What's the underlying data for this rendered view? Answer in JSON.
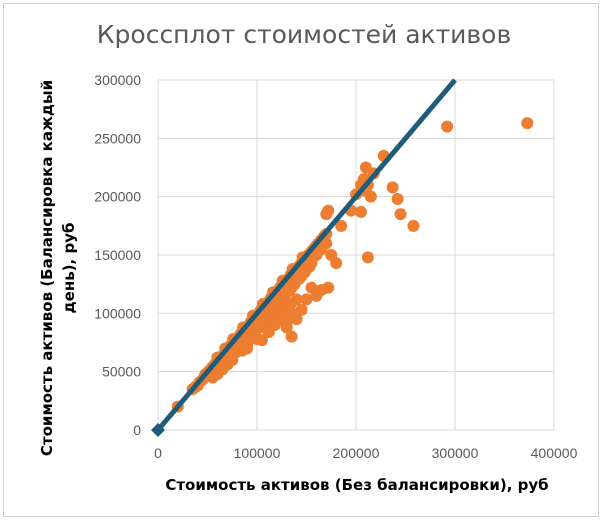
{
  "chart_data": {
    "type": "scatter",
    "title": "Кроссплот стоимостей активов",
    "xlabel": "Стоимость активов (Без балансировки), руб",
    "ylabel_lines": [
      "Стоимость активов  (Балансировка каждый",
      "день), руб"
    ],
    "xlim": [
      0,
      400000
    ],
    "ylim": [
      0,
      300000
    ],
    "x_ticks": [
      "0",
      "100000",
      "200000",
      "300000",
      "400000"
    ],
    "y_ticks": [
      "0",
      "50000",
      "100000",
      "150000",
      "200000",
      "250000",
      "300000"
    ],
    "grid": true,
    "colors": {
      "points": "#ED7D31",
      "line": "#1F5C7A",
      "grid": "#D9D9D9",
      "title": "#595959"
    },
    "reference_line": {
      "x": [
        0,
        300000
      ],
      "y": [
        0,
        300000
      ]
    },
    "series": [
      {
        "points": [
          [
            20000,
            20000
          ],
          [
            35000,
            35000
          ],
          [
            38000,
            37000
          ],
          [
            40000,
            38000
          ],
          [
            42000,
            41000
          ],
          [
            45000,
            43000
          ],
          [
            47000,
            46000
          ],
          [
            48000,
            48000
          ],
          [
            50000,
            49000
          ],
          [
            52000,
            51000
          ],
          [
            55000,
            54000
          ],
          [
            56000,
            52000
          ],
          [
            58000,
            57000
          ],
          [
            60000,
            58000
          ],
          [
            62000,
            60000
          ],
          [
            64000,
            63000
          ],
          [
            65000,
            61000
          ],
          [
            68000,
            66000
          ],
          [
            70000,
            68000
          ],
          [
            72000,
            70000
          ],
          [
            74000,
            73000
          ],
          [
            75000,
            72000
          ],
          [
            78000,
            76000
          ],
          [
            80000,
            78000
          ],
          [
            82000,
            80000
          ],
          [
            84000,
            83000
          ],
          [
            85000,
            81000
          ],
          [
            88000,
            86000
          ],
          [
            90000,
            88000
          ],
          [
            92000,
            90000
          ],
          [
            94000,
            93000
          ],
          [
            95000,
            91000
          ],
          [
            98000,
            96000
          ],
          [
            100000,
            98000
          ],
          [
            102000,
            100000
          ],
          [
            104000,
            103000
          ],
          [
            105000,
            101000
          ],
          [
            108000,
            106000
          ],
          [
            110000,
            108000
          ],
          [
            112000,
            110000
          ],
          [
            114000,
            113000
          ],
          [
            115000,
            111000
          ],
          [
            118000,
            116000
          ],
          [
            120000,
            118000
          ],
          [
            122000,
            120000
          ],
          [
            124000,
            123000
          ],
          [
            125000,
            121000
          ],
          [
            128000,
            126000
          ],
          [
            130000,
            128000
          ],
          [
            132000,
            130000
          ],
          [
            134000,
            133000
          ],
          [
            135000,
            131000
          ],
          [
            138000,
            136000
          ],
          [
            140000,
            138000
          ],
          [
            142000,
            140000
          ],
          [
            145000,
            143000
          ],
          [
            148000,
            146000
          ],
          [
            150000,
            148000
          ],
          [
            152000,
            150000
          ],
          [
            155000,
            153000
          ],
          [
            158000,
            156000
          ],
          [
            160000,
            158000
          ],
          [
            162000,
            160000
          ],
          [
            165000,
            163000
          ],
          [
            168000,
            166000
          ],
          [
            170000,
            168000
          ],
          [
            55000,
            45000
          ],
          [
            60000,
            48000
          ],
          [
            65000,
            52000
          ],
          [
            70000,
            56000
          ],
          [
            75000,
            60000
          ],
          [
            78000,
            66000
          ],
          [
            80000,
            70000
          ],
          [
            85000,
            68000
          ],
          [
            88000,
            75000
          ],
          [
            90000,
            73000
          ],
          [
            92000,
            78000
          ],
          [
            95000,
            82000
          ],
          [
            98000,
            85000
          ],
          [
            100000,
            88000
          ],
          [
            103000,
            90000
          ],
          [
            105000,
            93000
          ],
          [
            108000,
            95000
          ],
          [
            110000,
            97000
          ],
          [
            112000,
            100000
          ],
          [
            115000,
            102000
          ],
          [
            118000,
            105000
          ],
          [
            120000,
            108000
          ],
          [
            122000,
            110000
          ],
          [
            125000,
            112000
          ],
          [
            128000,
            115000
          ],
          [
            130000,
            118000
          ],
          [
            133000,
            120000
          ],
          [
            135000,
            122000
          ],
          [
            138000,
            125000
          ],
          [
            140000,
            128000
          ],
          [
            143000,
            130000
          ],
          [
            145000,
            132000
          ],
          [
            148000,
            135000
          ],
          [
            150000,
            138000
          ],
          [
            153000,
            140000
          ],
          [
            155000,
            143000
          ],
          [
            60000,
            62000
          ],
          [
            68000,
            70000
          ],
          [
            76000,
            78000
          ],
          [
            86000,
            88000
          ],
          [
            96000,
            98000
          ],
          [
            106000,
            108000
          ],
          [
            116000,
            118000
          ],
          [
            126000,
            128000
          ],
          [
            136000,
            138000
          ],
          [
            146000,
            148000
          ],
          [
            75000,
            66000
          ],
          [
            82000,
            72000
          ],
          [
            85000,
            75000
          ],
          [
            92000,
            80000
          ],
          [
            98000,
            84000
          ],
          [
            104000,
            88000
          ],
          [
            110000,
            92000
          ],
          [
            116000,
            96000
          ],
          [
            122000,
            100000
          ],
          [
            128000,
            104000
          ],
          [
            134000,
            108000
          ],
          [
            140000,
            112000
          ],
          [
            65000,
            58000
          ],
          [
            70000,
            62000
          ],
          [
            85000,
            78000
          ],
          [
            95000,
            88000
          ],
          [
            100000,
            95000
          ],
          [
            110000,
            102000
          ],
          [
            120000,
            112000
          ],
          [
            130000,
            122000
          ],
          [
            140000,
            133000
          ],
          [
            150000,
            141000
          ],
          [
            155000,
            145000
          ],
          [
            160000,
            150000
          ],
          [
            165000,
            155000
          ],
          [
            170000,
            160000
          ],
          [
            80000,
            68000
          ],
          [
            90000,
            70000
          ],
          [
            100000,
            78000
          ],
          [
            105000,
            77000
          ],
          [
            112000,
            84000
          ],
          [
            118000,
            90000
          ],
          [
            125000,
            95000
          ],
          [
            130000,
            92000
          ],
          [
            135000,
            100000
          ],
          [
            140000,
            95000
          ],
          [
            145000,
            103000
          ],
          [
            150000,
            112000
          ],
          [
            160000,
            115000
          ],
          [
            130000,
            88000
          ],
          [
            135000,
            80000
          ],
          [
            155000,
            122000
          ],
          [
            165000,
            120000
          ],
          [
            172000,
            122000
          ],
          [
            180000,
            143000
          ],
          [
            175000,
            150000
          ],
          [
            170000,
            185000
          ],
          [
            172000,
            188000
          ],
          [
            185000,
            175000
          ],
          [
            195000,
            188000
          ],
          [
            200000,
            202000
          ],
          [
            205000,
            210000
          ],
          [
            208000,
            215000
          ],
          [
            210000,
            205000
          ],
          [
            212000,
            210000
          ],
          [
            215000,
            200000
          ],
          [
            210000,
            225000
          ],
          [
            228000,
            235000
          ],
          [
            218000,
            220000
          ],
          [
            205000,
            187000
          ],
          [
            237000,
            208000
          ],
          [
            242000,
            198000
          ],
          [
            245000,
            185000
          ],
          [
            258000,
            175000
          ],
          [
            212000,
            148000
          ],
          [
            292000,
            260000
          ],
          [
            373000,
            263000
          ]
        ]
      }
    ]
  }
}
